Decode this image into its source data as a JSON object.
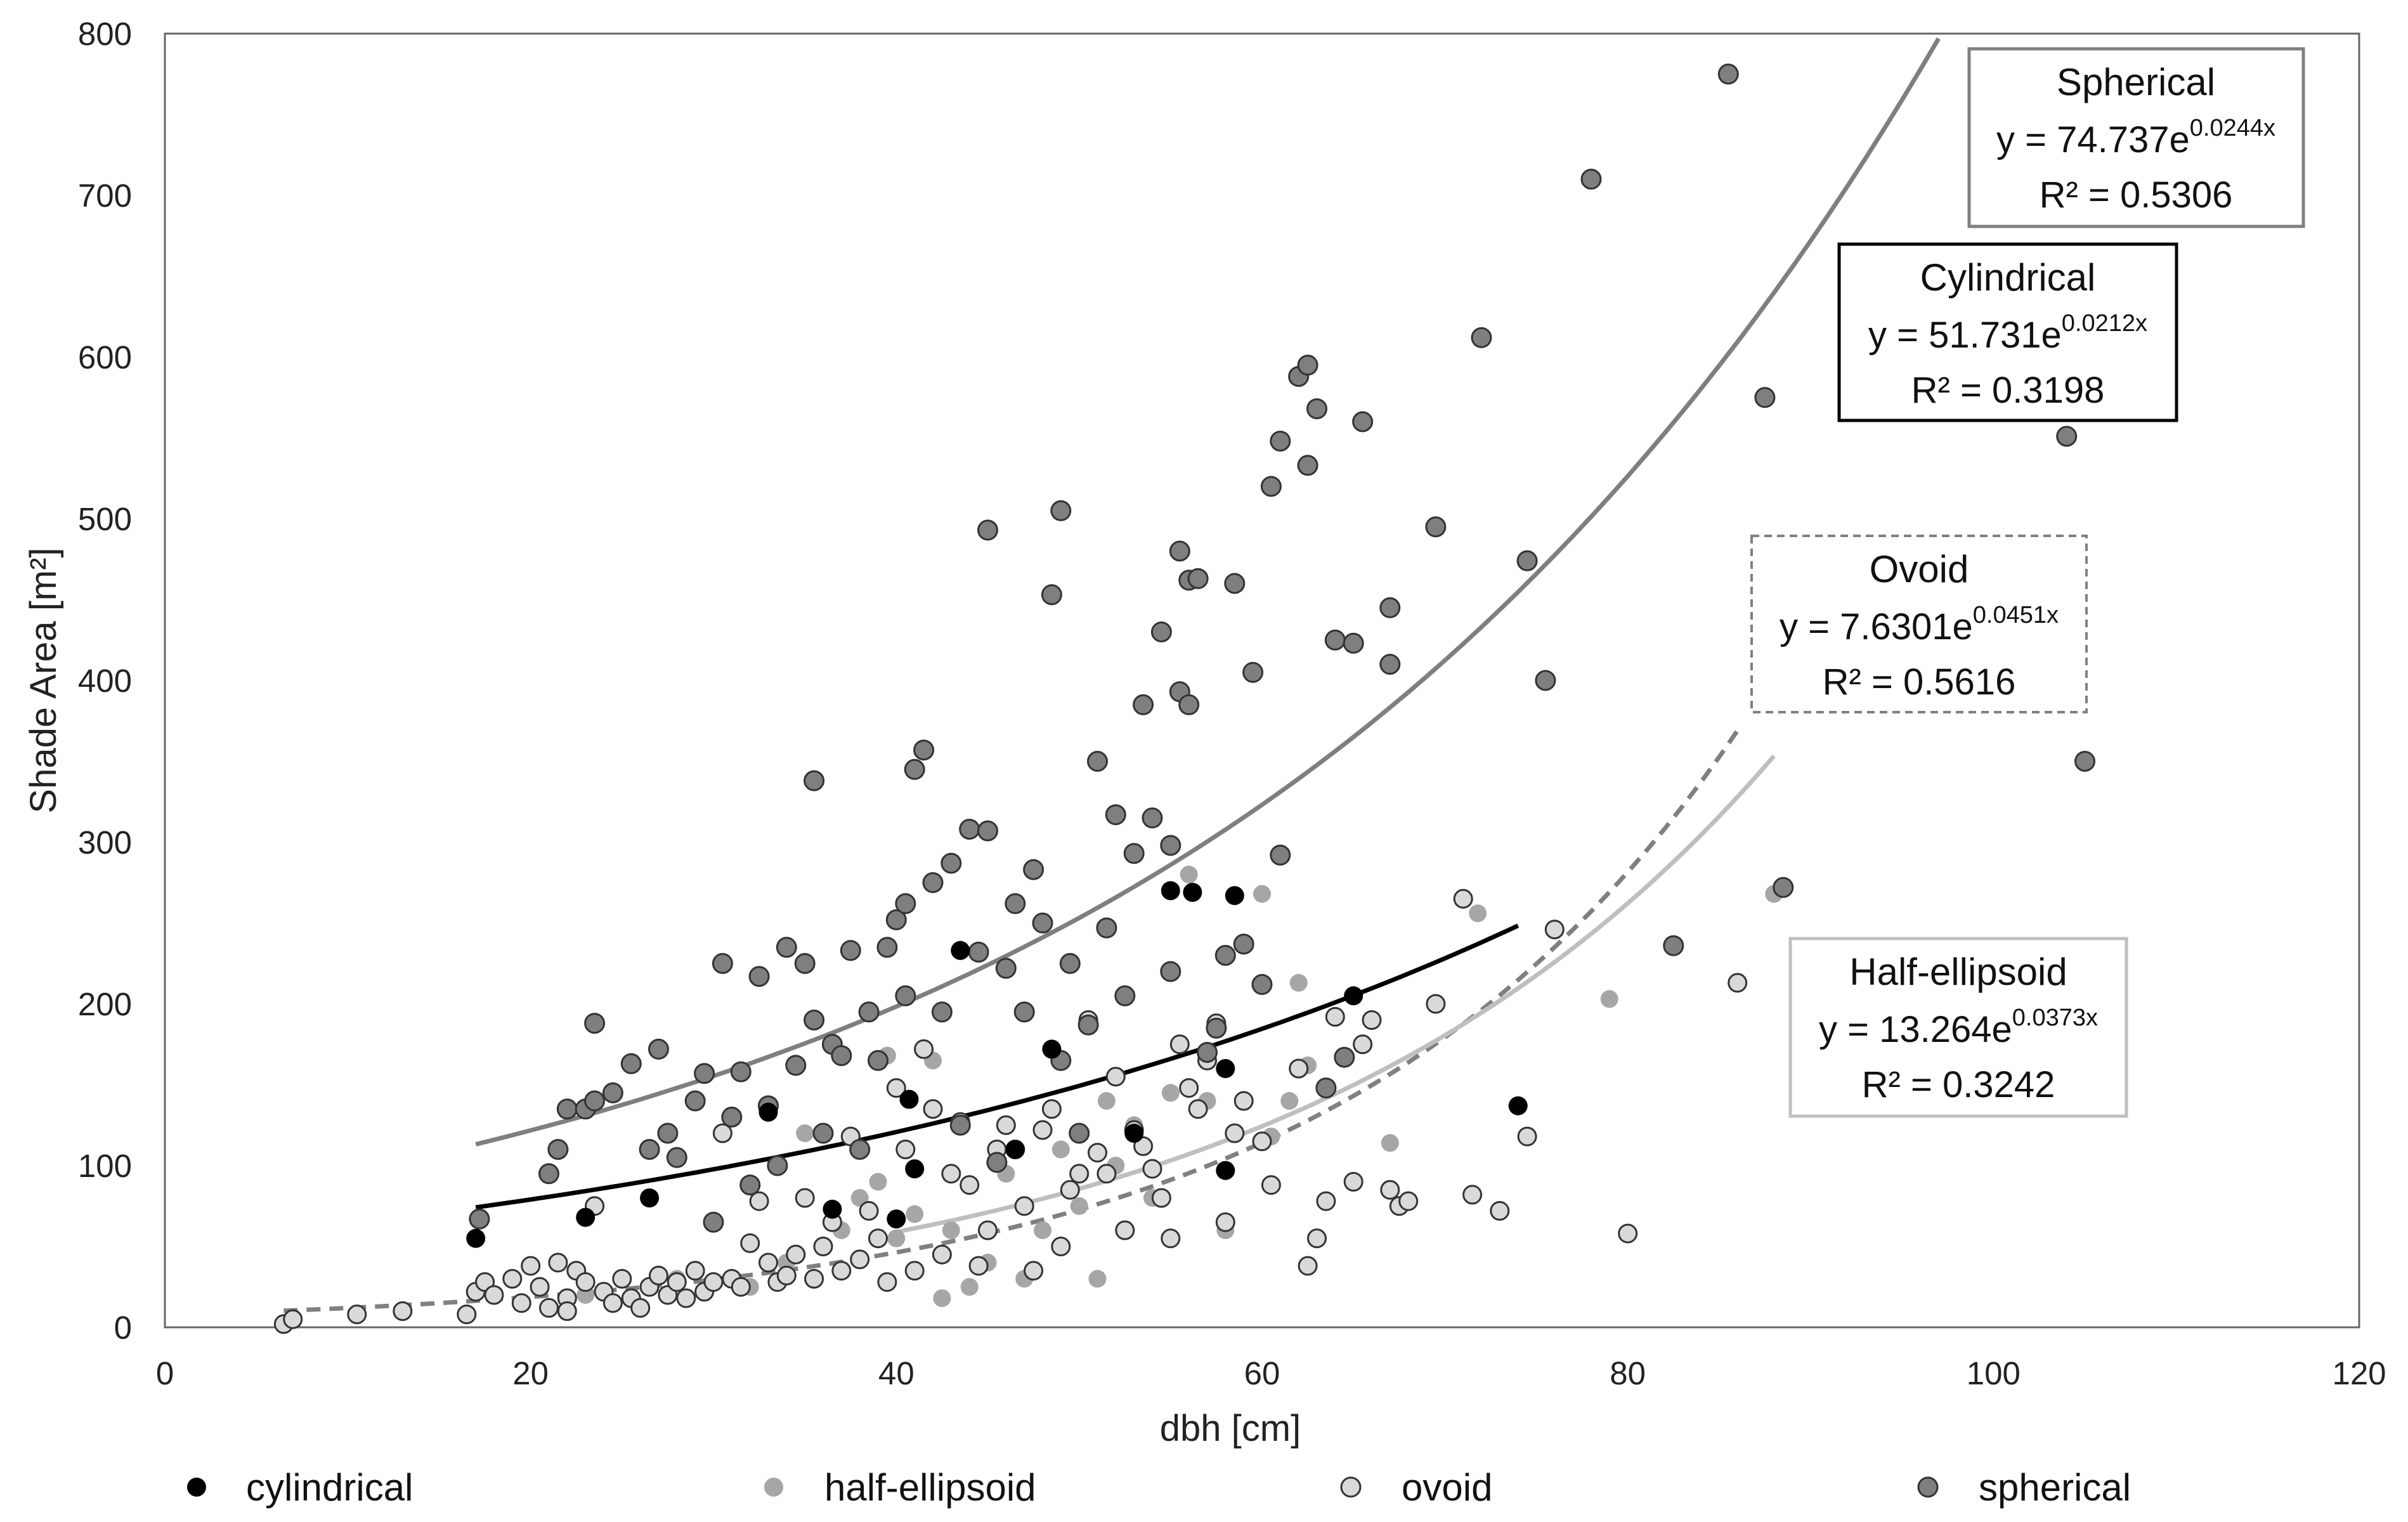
{
  "chart_data": {
    "type": "scatter",
    "title": "",
    "xlabel": "dbh [cm]",
    "ylabel": "Shade Area [m²]",
    "xlim": [
      0,
      120
    ],
    "ylim": [
      0,
      800
    ],
    "xticks": [
      0,
      20,
      40,
      60,
      80,
      100,
      120
    ],
    "yticks": [
      0,
      100,
      200,
      300,
      400,
      500,
      600,
      700,
      800
    ],
    "grid": false,
    "legend_position": "bottom",
    "series": [
      {
        "name": "cylindrical",
        "color": "#000000",
        "points": [
          [
            17,
            55
          ],
          [
            23,
            68
          ],
          [
            26.5,
            80
          ],
          [
            33,
            133
          ],
          [
            36.5,
            73
          ],
          [
            40,
            67
          ],
          [
            40.7,
            141
          ],
          [
            41,
            98
          ],
          [
            43.5,
            233
          ],
          [
            46.5,
            110
          ],
          [
            48.5,
            172
          ],
          [
            53,
            120
          ],
          [
            55,
            270
          ],
          [
            56.2,
            269
          ],
          [
            58,
            160
          ],
          [
            58,
            97
          ],
          [
            58.5,
            267
          ],
          [
            65,
            205
          ],
          [
            74,
            137
          ]
        ]
      },
      {
        "name": "half-ellipsoid",
        "color": "#a6a6a6",
        "points": [
          [
            23,
            20
          ],
          [
            28,
            30
          ],
          [
            32,
            25
          ],
          [
            34,
            40
          ],
          [
            35,
            120
          ],
          [
            37,
            60
          ],
          [
            38,
            80
          ],
          [
            39,
            90
          ],
          [
            39.5,
            168
          ],
          [
            40,
            55
          ],
          [
            41,
            70
          ],
          [
            42,
            165
          ],
          [
            42.5,
            18
          ],
          [
            43,
            60
          ],
          [
            44,
            25
          ],
          [
            45,
            40
          ],
          [
            46,
            95
          ],
          [
            47,
            30
          ],
          [
            48,
            60
          ],
          [
            49,
            110
          ],
          [
            50,
            75
          ],
          [
            51,
            30
          ],
          [
            51.5,
            140
          ],
          [
            52,
            100
          ],
          [
            53,
            125
          ],
          [
            54,
            80
          ],
          [
            55,
            145
          ],
          [
            56,
            280
          ],
          [
            57,
            140
          ],
          [
            58,
            60
          ],
          [
            60,
            268
          ],
          [
            60.5,
            118
          ],
          [
            61.5,
            140
          ],
          [
            62,
            213
          ],
          [
            62.5,
            162
          ],
          [
            63,
            55
          ],
          [
            67,
            114
          ],
          [
            71.8,
            256
          ],
          [
            79,
            203
          ],
          [
            88,
            268
          ]
        ]
      },
      {
        "name": "ovoid",
        "color": "#d9d9d9",
        "points": [
          [
            6.5,
            2
          ],
          [
            7,
            5
          ],
          [
            10.5,
            8
          ],
          [
            13,
            10
          ],
          [
            16.5,
            8
          ],
          [
            17,
            22
          ],
          [
            17.5,
            28
          ],
          [
            18,
            20
          ],
          [
            19,
            30
          ],
          [
            19.5,
            15
          ],
          [
            20,
            38
          ],
          [
            20.5,
            25
          ],
          [
            21,
            12
          ],
          [
            21.5,
            40
          ],
          [
            22,
            18
          ],
          [
            22,
            10
          ],
          [
            22.5,
            35
          ],
          [
            23,
            28
          ],
          [
            23.5,
            75
          ],
          [
            24,
            22
          ],
          [
            24.5,
            15
          ],
          [
            25,
            30
          ],
          [
            25.5,
            18
          ],
          [
            26,
            12
          ],
          [
            26.5,
            25
          ],
          [
            27,
            32
          ],
          [
            27.5,
            20
          ],
          [
            28,
            28
          ],
          [
            28.5,
            18
          ],
          [
            29,
            35
          ],
          [
            29.5,
            22
          ],
          [
            30,
            28
          ],
          [
            30.5,
            120
          ],
          [
            31,
            30
          ],
          [
            31.5,
            25
          ],
          [
            32,
            52
          ],
          [
            32.5,
            78
          ],
          [
            33,
            40
          ],
          [
            33.5,
            28
          ],
          [
            34,
            32
          ],
          [
            34.5,
            45
          ],
          [
            35,
            80
          ],
          [
            35.5,
            30
          ],
          [
            36,
            50
          ],
          [
            36.5,
            65
          ],
          [
            37,
            35
          ],
          [
            37.5,
            118
          ],
          [
            38,
            42
          ],
          [
            38.5,
            72
          ],
          [
            39,
            55
          ],
          [
            39.5,
            28
          ],
          [
            40,
            148
          ],
          [
            40.5,
            110
          ],
          [
            41,
            35
          ],
          [
            41.5,
            172
          ],
          [
            42,
            135
          ],
          [
            42.5,
            45
          ],
          [
            43,
            95
          ],
          [
            43.5,
            127
          ],
          [
            44,
            88
          ],
          [
            44.5,
            38
          ],
          [
            45,
            60
          ],
          [
            45.5,
            110
          ],
          [
            46,
            125
          ],
          [
            46.5,
            110
          ],
          [
            47,
            75
          ],
          [
            47.5,
            35
          ],
          [
            48,
            122
          ],
          [
            48.5,
            135
          ],
          [
            49,
            50
          ],
          [
            49.5,
            85
          ],
          [
            50,
            95
          ],
          [
            50.5,
            190
          ],
          [
            51,
            108
          ],
          [
            51.5,
            95
          ],
          [
            52,
            155
          ],
          [
            52.5,
            60
          ],
          [
            53,
            122
          ],
          [
            53.5,
            112
          ],
          [
            54,
            98
          ],
          [
            54.5,
            80
          ],
          [
            55,
            55
          ],
          [
            55.5,
            175
          ],
          [
            56,
            148
          ],
          [
            56.5,
            135
          ],
          [
            57,
            165
          ],
          [
            57.5,
            188
          ],
          [
            58,
            65
          ],
          [
            58.5,
            120
          ],
          [
            59,
            140
          ],
          [
            60,
            115
          ],
          [
            60.5,
            88
          ],
          [
            62,
            160
          ],
          [
            62.5,
            38
          ],
          [
            63,
            55
          ],
          [
            63.5,
            78
          ],
          [
            64,
            192
          ],
          [
            65,
            90
          ],
          [
            65.5,
            175
          ],
          [
            66,
            190
          ],
          [
            67,
            85
          ],
          [
            67.5,
            75
          ],
          [
            68,
            78
          ],
          [
            69.5,
            200
          ],
          [
            71,
            265
          ],
          [
            71.5,
            82
          ],
          [
            73,
            72
          ],
          [
            74.5,
            118
          ],
          [
            76,
            246
          ],
          [
            80,
            58
          ],
          [
            86,
            213
          ]
        ]
      },
      {
        "name": "spherical",
        "color": "#7f7f7f",
        "points": [
          [
            17.2,
            67
          ],
          [
            21,
            95
          ],
          [
            21.5,
            110
          ],
          [
            22,
            135
          ],
          [
            23,
            135
          ],
          [
            23.5,
            140
          ],
          [
            23.5,
            188
          ],
          [
            24.5,
            145
          ],
          [
            25.5,
            163
          ],
          [
            26.5,
            110
          ],
          [
            27,
            172
          ],
          [
            27.5,
            120
          ],
          [
            28,
            105
          ],
          [
            29,
            140
          ],
          [
            29.5,
            157
          ],
          [
            30,
            65
          ],
          [
            30.5,
            225
          ],
          [
            31,
            130
          ],
          [
            31.5,
            158
          ],
          [
            32,
            88
          ],
          [
            32.5,
            217
          ],
          [
            33,
            137
          ],
          [
            33.5,
            100
          ],
          [
            34,
            235
          ],
          [
            34.5,
            162
          ],
          [
            35,
            225
          ],
          [
            35.5,
            190
          ],
          [
            35.5,
            338
          ],
          [
            36,
            120
          ],
          [
            36.5,
            175
          ],
          [
            37,
            168
          ],
          [
            37.5,
            233
          ],
          [
            38,
            110
          ],
          [
            38.5,
            195
          ],
          [
            39,
            165
          ],
          [
            39.5,
            235
          ],
          [
            40,
            252
          ],
          [
            40.5,
            262
          ],
          [
            40.5,
            205
          ],
          [
            41,
            345
          ],
          [
            41.5,
            357
          ],
          [
            42,
            275
          ],
          [
            42.5,
            195
          ],
          [
            43,
            287
          ],
          [
            43.5,
            125
          ],
          [
            44,
            308
          ],
          [
            44.5,
            232
          ],
          [
            45,
            493
          ],
          [
            45,
            307
          ],
          [
            45.5,
            102
          ],
          [
            46,
            222
          ],
          [
            46.5,
            262
          ],
          [
            47,
            195
          ],
          [
            47.5,
            283
          ],
          [
            48,
            250
          ],
          [
            48.5,
            453
          ],
          [
            49,
            505
          ],
          [
            49,
            165
          ],
          [
            49.5,
            225
          ],
          [
            50,
            120
          ],
          [
            50.5,
            187
          ],
          [
            51,
            350
          ],
          [
            51.5,
            247
          ],
          [
            52,
            317
          ],
          [
            52.5,
            205
          ],
          [
            53,
            293
          ],
          [
            53.5,
            385
          ],
          [
            54,
            315
          ],
          [
            54.5,
            430
          ],
          [
            55,
            220
          ],
          [
            55,
            298
          ],
          [
            55.5,
            393
          ],
          [
            55.5,
            480
          ],
          [
            56,
            462
          ],
          [
            56,
            385
          ],
          [
            56.5,
            463
          ],
          [
            57,
            170
          ],
          [
            57.5,
            185
          ],
          [
            58,
            230
          ],
          [
            58.5,
            460
          ],
          [
            59,
            237
          ],
          [
            59.5,
            405
          ],
          [
            60,
            212
          ],
          [
            60.5,
            520
          ],
          [
            61,
            548
          ],
          [
            61,
            292
          ],
          [
            62,
            588
          ],
          [
            62.5,
            595
          ],
          [
            62.5,
            533
          ],
          [
            63,
            568
          ],
          [
            63.5,
            148
          ],
          [
            64,
            425
          ],
          [
            64.5,
            167
          ],
          [
            65,
            423
          ],
          [
            65.5,
            560
          ],
          [
            67,
            445
          ],
          [
            67,
            410
          ],
          [
            69.5,
            495
          ],
          [
            72,
            612
          ],
          [
            74.5,
            474
          ],
          [
            75.5,
            400
          ],
          [
            82.5,
            236
          ],
          [
            78,
            710
          ],
          [
            85.5,
            775
          ],
          [
            87.5,
            575
          ],
          [
            88.5,
            272
          ],
          [
            104,
            551
          ],
          [
            105,
            350
          ]
        ]
      }
    ],
    "trendlines": [
      {
        "series": "spherical",
        "a": 74.737,
        "b": 0.0244,
        "x_range": [
          17,
          97
        ],
        "color": "#7f7f7f",
        "dashed": false,
        "label": "Spherical",
        "equation_base": "y = 74.737e",
        "equation_exp": "0.0244x",
        "r2": "R² = 0.5306"
      },
      {
        "series": "cylindrical",
        "a": 51.731,
        "b": 0.0212,
        "x_range": [
          17,
          74
        ],
        "color": "#000000",
        "dashed": false,
        "label": "Cylindrical",
        "equation_base": "y = 51.731e",
        "equation_exp": "0.0212x",
        "r2": "R² = 0.3198"
      },
      {
        "series": "ovoid",
        "a": 7.6301,
        "b": 0.0451,
        "x_range": [
          6.5,
          86
        ],
        "color": "#808080",
        "dashed": true,
        "label": "Ovoid",
        "equation_base": "y = 7.6301e",
        "equation_exp": "0.0451x",
        "r2": "R² = 0.5616"
      },
      {
        "series": "half-ellipsoid",
        "a": 13.264,
        "b": 0.0373,
        "x_range": [
          40,
          88
        ],
        "color": "#bfbfbf",
        "dashed": false,
        "label": "Half-ellipsoid",
        "equation_base": "y = 13.264e",
        "equation_exp": "0.0373x",
        "r2": "R² = 0.3242"
      }
    ]
  }
}
